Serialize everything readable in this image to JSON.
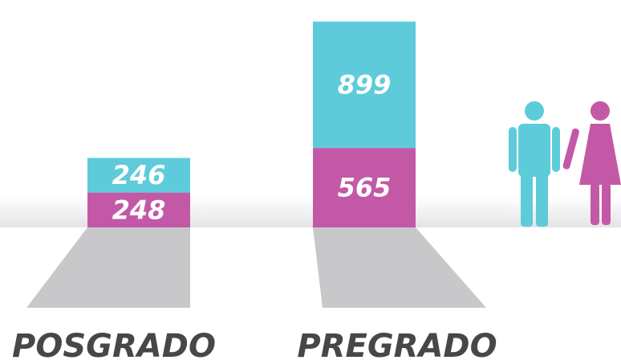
{
  "chart_data": {
    "type": "stacked-bar",
    "categories": [
      "POSGRADO",
      "PREGRADO"
    ],
    "series": [
      {
        "color": "#c359a6",
        "values": [
          248,
          565
        ]
      },
      {
        "color": "#5ecbda",
        "values": [
          246,
          899
        ]
      }
    ]
  }
}
